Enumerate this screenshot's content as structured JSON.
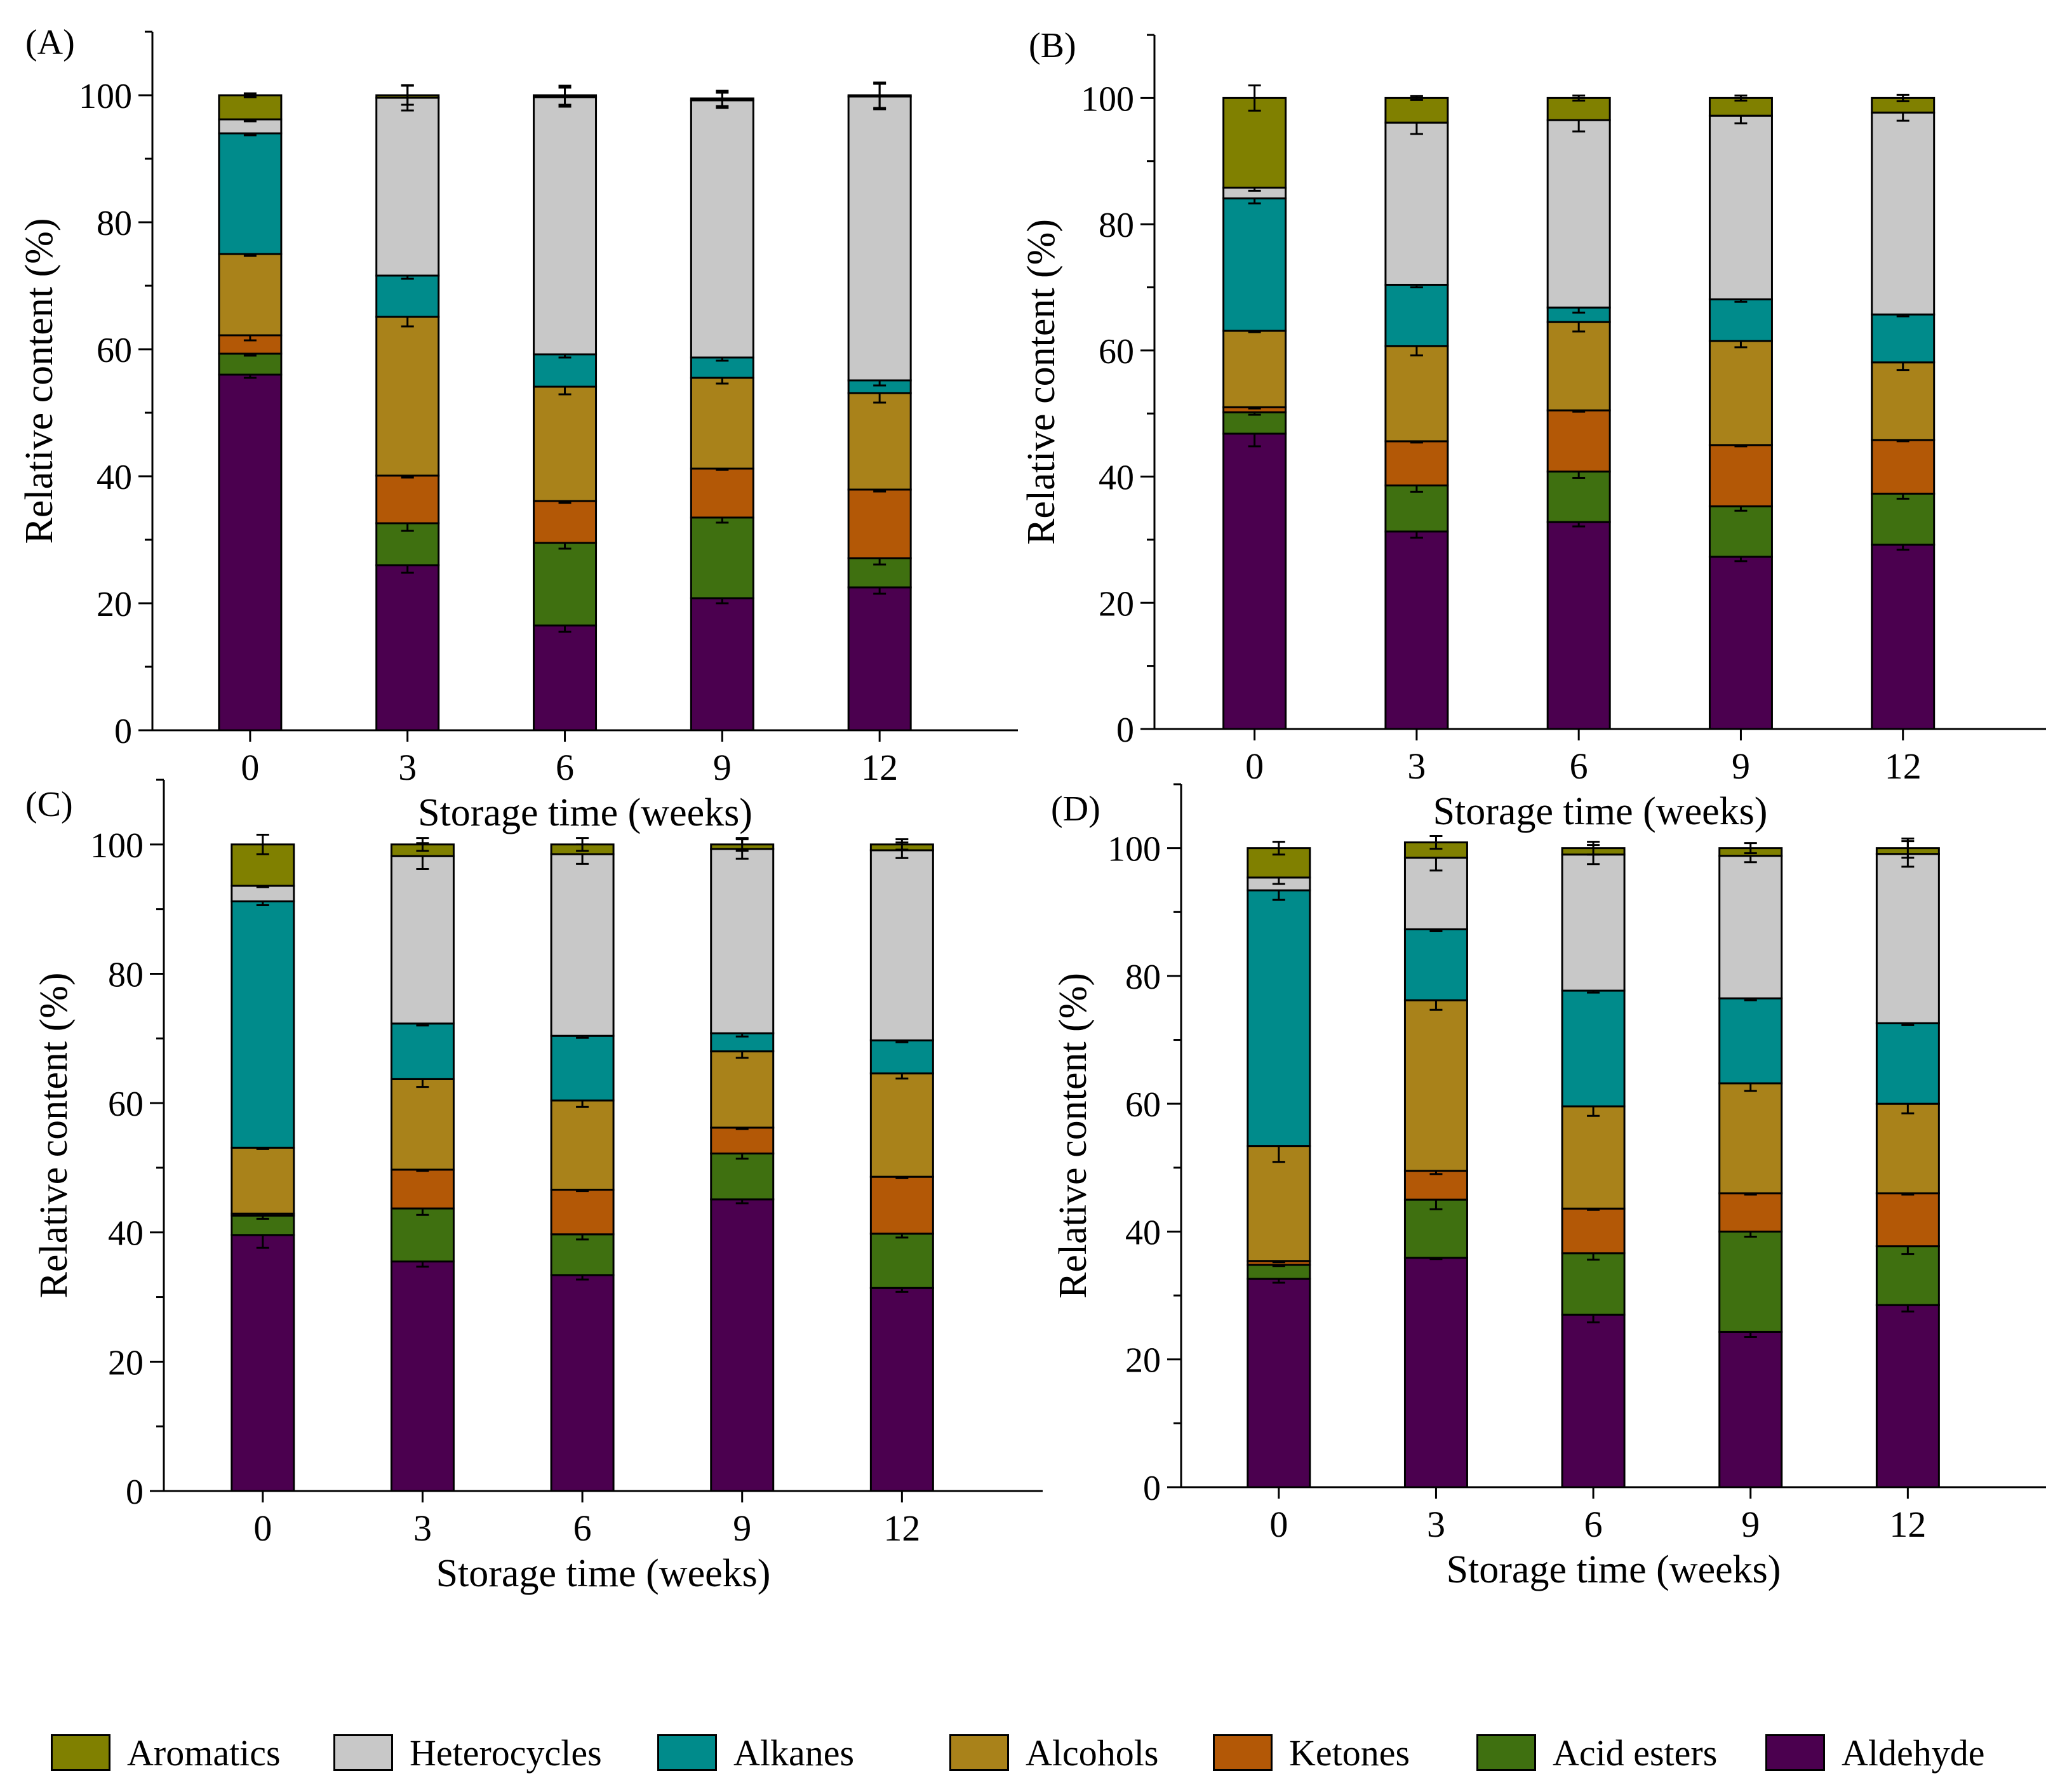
{
  "figure": {
    "legend": [
      {
        "key": "aromatics",
        "label": "Aromatics",
        "color": "#808000"
      },
      {
        "key": "heterocycles",
        "label": "Heterocycles",
        "color": "#c8c8c8"
      },
      {
        "key": "alkanes",
        "label": "Alkanes",
        "color": "#008b8b"
      },
      {
        "key": "alcohols",
        "label": "Alcohols",
        "color": "#a9821a"
      },
      {
        "key": "ketones",
        "label": "Ketones",
        "color": "#b35806"
      },
      {
        "key": "acid_esters",
        "label": "Acid esters",
        "color": "#3f7010"
      },
      {
        "key": "aldehyde",
        "label": "Aldehyde",
        "color": "#4b004f"
      }
    ]
  },
  "chart_data": [
    {
      "type": "bar",
      "stacked": true,
      "panel_label": "(A)",
      "xlabel": "Storage time (weeks)",
      "ylabel": "Relative content (%)",
      "categories": [
        "0",
        "3",
        "6",
        "9",
        "12"
      ],
      "ylim": [
        0,
        110
      ],
      "yticks": [
        0,
        20,
        40,
        60,
        80,
        100
      ],
      "series": [
        {
          "name": "Aldehyde",
          "values": [
            56,
            26,
            16.5,
            20.8,
            22.5
          ],
          "errors": [
            0.5,
            1.2,
            1.0,
            0.8,
            1.0
          ]
        },
        {
          "name": "Acid esters",
          "values": [
            3.3,
            6.6,
            13.0,
            12.7,
            4.6
          ],
          "errors": [
            0.3,
            1.2,
            0.9,
            0.8,
            1.0
          ]
        },
        {
          "name": "Ketones",
          "values": [
            2.9,
            7.5,
            6.6,
            7.7,
            10.8
          ],
          "errors": [
            0.8,
            0.3,
            0.3,
            0.2,
            0.3
          ]
        },
        {
          "name": "Alcohols",
          "values": [
            12.8,
            25.0,
            18.0,
            14.3,
            15.2
          ],
          "errors": [
            0.3,
            1.5,
            1.2,
            0.9,
            1.5
          ]
        },
        {
          "name": "Alkanes",
          "values": [
            19.0,
            6.5,
            5.1,
            3.2,
            2.0
          ],
          "errors": [
            0.3,
            0.5,
            0.5,
            0.5,
            0.8
          ]
        },
        {
          "name": "Heterocycles",
          "values": [
            2.2,
            28.0,
            40.5,
            40.5,
            44.7
          ],
          "errors": [
            0.3,
            2.0,
            1.5,
            1.2,
            2.0
          ]
        },
        {
          "name": "Aromatics",
          "values": [
            3.8,
            0.4,
            0.3,
            0.3,
            0.2
          ],
          "errors": [
            0.3,
            1.5,
            1.5,
            1.2,
            2.0
          ]
        }
      ]
    },
    {
      "type": "bar",
      "stacked": true,
      "panel_label": "(B)",
      "xlabel": "Storage time (weeks)",
      "ylabel": "Relative content (%)",
      "categories": [
        "0",
        "3",
        "6",
        "9",
        "12"
      ],
      "ylim": [
        0,
        110
      ],
      "yticks": [
        0,
        20,
        40,
        60,
        80,
        100
      ],
      "series": [
        {
          "name": "Aldehyde",
          "values": [
            46.8,
            31.3,
            32.8,
            27.3,
            29.2
          ],
          "errors": [
            2.0,
            1.0,
            0.7,
            0.7,
            0.8
          ]
        },
        {
          "name": "Acid esters",
          "values": [
            3.4,
            7.3,
            8.0,
            8.0,
            8.1
          ],
          "errors": [
            0.4,
            1.0,
            1.0,
            0.7,
            0.8
          ]
        },
        {
          "name": "Ketones",
          "values": [
            0.8,
            7.0,
            9.7,
            9.7,
            8.5
          ],
          "errors": [
            0.2,
            0.2,
            0.2,
            0.2,
            0.2
          ]
        },
        {
          "name": "Alcohols",
          "values": [
            12.1,
            15.1,
            14.0,
            16.5,
            12.3
          ],
          "errors": [
            0.2,
            1.5,
            1.5,
            1.0,
            1.2
          ]
        },
        {
          "name": "Alkanes",
          "values": [
            21.0,
            9.7,
            2.3,
            6.6,
            7.6
          ],
          "errors": [
            0.8,
            0.4,
            0.8,
            0.4,
            0.3
          ]
        },
        {
          "name": "Heterocycles",
          "values": [
            1.7,
            25.7,
            29.7,
            29.1,
            32.0
          ],
          "errors": [
            0.5,
            1.8,
            1.8,
            1.2,
            1.3
          ]
        },
        {
          "name": "Aromatics",
          "values": [
            14.2,
            3.9,
            3.5,
            2.8,
            2.3
          ],
          "errors": [
            2.0,
            0.3,
            0.4,
            0.4,
            0.5
          ]
        }
      ]
    },
    {
      "type": "bar",
      "stacked": true,
      "panel_label": "(C)",
      "xlabel": "Storage time (weeks)",
      "ylabel": "Relative content (%)",
      "categories": [
        "0",
        "3",
        "6",
        "9",
        "12"
      ],
      "ylim": [
        0,
        110
      ],
      "yticks": [
        0,
        20,
        40,
        60,
        80,
        100
      ],
      "series": [
        {
          "name": "Aldehyde",
          "values": [
            39.6,
            35.5,
            33.4,
            45.1,
            31.4
          ],
          "errors": [
            2.0,
            0.8,
            0.7,
            0.6,
            0.6
          ]
        },
        {
          "name": "Acid esters",
          "values": [
            3.0,
            8.2,
            6.3,
            7.1,
            8.4
          ],
          "errors": [
            0.5,
            1.0,
            0.8,
            0.8,
            0.6
          ]
        },
        {
          "name": "Ketones",
          "values": [
            0.3,
            6.0,
            6.9,
            4.0,
            8.8
          ],
          "errors": [
            0.2,
            0.2,
            0.2,
            0.2,
            0.2
          ]
        },
        {
          "name": "Alcohols",
          "values": [
            10.2,
            14.0,
            13.8,
            11.8,
            16.0
          ],
          "errors": [
            0.2,
            1.2,
            1.0,
            1.0,
            0.8
          ]
        },
        {
          "name": "Alkanes",
          "values": [
            38.1,
            8.6,
            10.0,
            2.8,
            5.1
          ],
          "errors": [
            0.6,
            0.3,
            0.3,
            0.5,
            0.3
          ]
        },
        {
          "name": "Heterocycles",
          "values": [
            2.4,
            25.9,
            28.1,
            28.5,
            29.4
          ],
          "errors": [
            0.2,
            2.0,
            1.5,
            1.5,
            1.2
          ]
        },
        {
          "name": "Aromatics",
          "values": [
            6.4,
            1.8,
            1.5,
            0.7,
            0.9
          ],
          "errors": [
            1.5,
            1.0,
            1.0,
            1.0,
            0.8
          ]
        }
      ]
    },
    {
      "type": "bar",
      "stacked": true,
      "panel_label": "(D)",
      "xlabel": "Storage time (weeks)",
      "ylabel": "Relative content (%)",
      "categories": [
        "0",
        "3",
        "6",
        "9",
        "12"
      ],
      "ylim": [
        0,
        110
      ],
      "yticks": [
        0,
        20,
        40,
        60,
        80,
        100
      ],
      "series": [
        {
          "name": "Aldehyde",
          "values": [
            32.6,
            35.9,
            27.0,
            24.3,
            28.5
          ],
          "errors": [
            0.6,
            0.2,
            1.2,
            0.8,
            1.0
          ]
        },
        {
          "name": "Acid esters",
          "values": [
            2.2,
            9.1,
            9.6,
            15.7,
            9.2
          ],
          "errors": [
            0.2,
            1.5,
            1.0,
            0.8,
            1.2
          ]
        },
        {
          "name": "Ketones",
          "values": [
            0.6,
            4.5,
            7.0,
            6.0,
            8.3
          ],
          "errors": [
            0.2,
            0.5,
            0.2,
            0.2,
            0.2
          ]
        },
        {
          "name": "Alcohols",
          "values": [
            18.0,
            26.7,
            16.0,
            17.2,
            14.0
          ],
          "errors": [
            2.5,
            1.5,
            1.5,
            1.2,
            1.5
          ]
        },
        {
          "name": "Alkanes",
          "values": [
            40.0,
            11.1,
            18.1,
            13.3,
            12.6
          ],
          "errors": [
            1.5,
            0.3,
            0.3,
            0.3,
            0.3
          ]
        },
        {
          "name": "Heterocycles",
          "values": [
            2.0,
            11.2,
            21.3,
            22.3,
            26.5
          ],
          "errors": [
            1.0,
            2.0,
            1.5,
            1.0,
            2.0
          ]
        },
        {
          "name": "Aromatics",
          "values": [
            4.6,
            2.4,
            1.0,
            1.2,
            0.9
          ],
          "errors": [
            1.0,
            1.0,
            1.0,
            0.8,
            1.5
          ]
        }
      ]
    }
  ]
}
